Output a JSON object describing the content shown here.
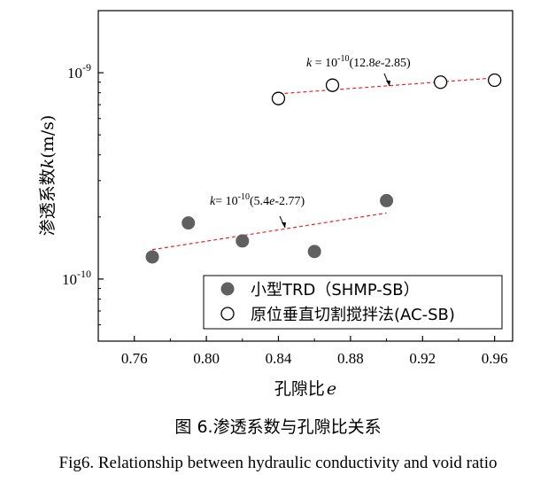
{
  "chart_data": {
    "type": "scatter",
    "xlabel": "孔隙比",
    "xlabel_symbol": "e",
    "ylabel": "渗透系数",
    "ylabel_symbol": "k",
    "ylabel_unit": "(m/s)",
    "y_scale": "log",
    "xlim": [
      0.74,
      0.97
    ],
    "ylim": [
      5e-11,
      2e-09
    ],
    "x_ticks": [
      0.76,
      0.8,
      0.84,
      0.88,
      0.92,
      0.96
    ],
    "x_tick_labels": [
      "0.76",
      "0.80",
      "0.84",
      "0.88",
      "0.92",
      "0.96"
    ],
    "y_ticks": [
      {
        "value": 1e-10,
        "base": "10",
        "exp": "-10"
      },
      {
        "value": 1e-09,
        "base": "10",
        "exp": "-9"
      }
    ],
    "series": [
      {
        "name": "小型TRD（SHMP-SB）",
        "marker": "filled-circle",
        "color": "#606060",
        "points": [
          {
            "x": 0.77,
            "y": 1.28e-10
          },
          {
            "x": 0.79,
            "y": 1.87e-10
          },
          {
            "x": 0.82,
            "y": 1.53e-10
          },
          {
            "x": 0.86,
            "y": 1.36e-10
          },
          {
            "x": 0.9,
            "y": 2.4e-10
          }
        ],
        "fit": {
          "x_start": 0.77,
          "x_end": 0.9,
          "slope": 5.4,
          "intercept": -2.77,
          "scale": 1e-10
        }
      },
      {
        "name": "原位垂直切割搅拌法(AC-SB)",
        "marker": "open-circle",
        "color": "#000000",
        "points": [
          {
            "x": 0.84,
            "y": 7.5e-10
          },
          {
            "x": 0.87,
            "y": 8.7e-10
          },
          {
            "x": 0.93,
            "y": 9e-10
          },
          {
            "x": 0.96,
            "y": 9.2e-10
          }
        ],
        "fit": {
          "x_start": 0.84,
          "x_end": 0.96,
          "slope": 12.8,
          "intercept": -2.85,
          "scale": 1e-10
        }
      }
    ],
    "fit_color": "#e8262a",
    "annotations": [
      {
        "prefix": "k",
        "eq": "= 10",
        "exp": "-10",
        "body": "(5.4",
        "var": "e",
        "tail": "-2.77)"
      },
      {
        "prefix": "k",
        "eq": " = 10",
        "exp": "-10",
        "body": "(12.8",
        "var": "e",
        "tail": "-2.85)"
      }
    ],
    "legend_position": "bottom-right",
    "grid": false
  },
  "caption_cn": "图 6.渗透系数与孔隙比关系",
  "caption_en": "Fig6. Relationship between hydraulic conductivity and void ratio"
}
